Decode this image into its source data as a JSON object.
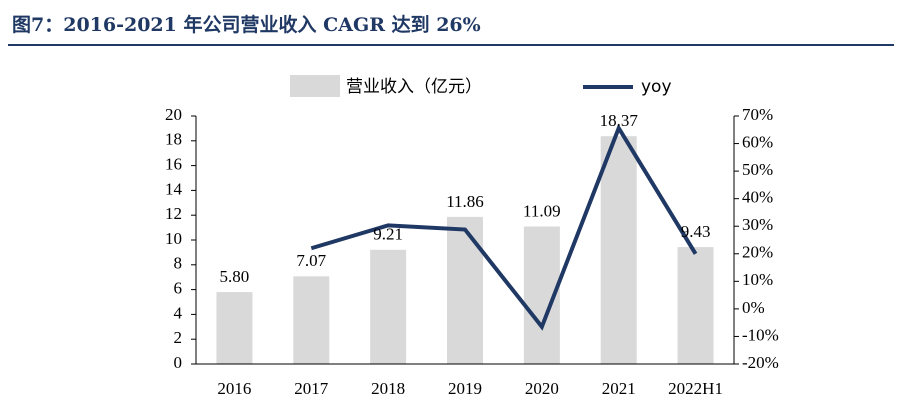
{
  "figure": {
    "title": "图7：2016-2021 年公司营业收入 CAGR 达到 26%"
  },
  "chart_data": {
    "type": "bar",
    "categories": [
      "2016",
      "2017",
      "2018",
      "2019",
      "2020",
      "2021",
      "2022H1"
    ],
    "series": [
      {
        "name": "营业收入（亿元）",
        "type": "bar",
        "axis": "left",
        "values": [
          5.8,
          7.07,
          9.21,
          11.86,
          11.09,
          18.37,
          9.43
        ],
        "labels": [
          "5.80",
          "7.07",
          "9.21",
          "11.86",
          "11.09",
          "18.37",
          "9.43"
        ],
        "color": "#d9d9d9"
      },
      {
        "name": "yoy",
        "type": "line",
        "axis": "right",
        "values": [
          null,
          22,
          30.3,
          28.8,
          -6.5,
          65.6,
          20
        ],
        "color": "#1f3864"
      }
    ],
    "left_axis": {
      "ylim": [
        0,
        20
      ],
      "ticks": [
        "0",
        "2",
        "4",
        "6",
        "8",
        "10",
        "12",
        "14",
        "16",
        "18",
        "20"
      ]
    },
    "right_axis": {
      "ylim": [
        -20,
        70
      ],
      "ticks": [
        "-20%",
        "-10%",
        "0%",
        "10%",
        "20%",
        "30%",
        "40%",
        "50%",
        "60%",
        "70%"
      ]
    },
    "legend_position": "top",
    "grid": false
  }
}
